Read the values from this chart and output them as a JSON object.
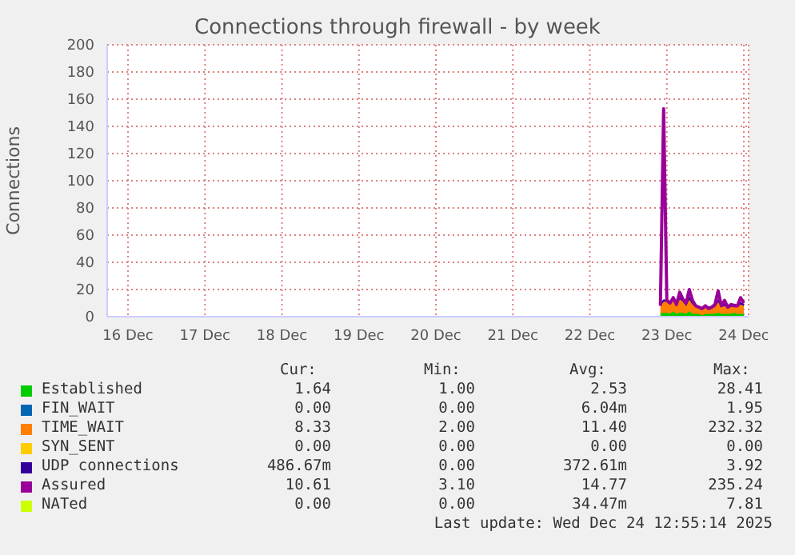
{
  "chart_data": {
    "type": "area",
    "title": "Connections through firewall - by week",
    "ylabel": "Connections",
    "stacked": true,
    "grid": true,
    "legend": "bottom",
    "x": [
      "2025-12-22T22:00",
      "2025-12-22T23:00",
      "2025-12-23T00:00",
      "2025-12-23T01:00",
      "2025-12-23T02:00",
      "2025-12-23T03:00",
      "2025-12-23T04:00",
      "2025-12-23T05:00",
      "2025-12-23T06:00",
      "2025-12-23T07:00",
      "2025-12-23T08:00",
      "2025-12-23T09:00",
      "2025-12-23T10:00",
      "2025-12-23T11:00",
      "2025-12-23T12:00",
      "2025-12-23T13:00",
      "2025-12-23T14:00",
      "2025-12-23T15:00",
      "2025-12-23T16:00",
      "2025-12-23T17:00",
      "2025-12-23T18:00",
      "2025-12-23T19:00",
      "2025-12-23T20:00",
      "2025-12-23T21:00",
      "2025-12-23T22:00",
      "2025-12-23T23:00",
      "2025-12-24T00:00"
    ],
    "xlim": [
      "2025-12-15T17:30",
      "2025-12-24T01:30"
    ],
    "xticks": [
      {
        "value": "2025-12-16",
        "label": "16 Dec"
      },
      {
        "value": "2025-12-17",
        "label": "17 Dec"
      },
      {
        "value": "2025-12-18",
        "label": "18 Dec"
      },
      {
        "value": "2025-12-19",
        "label": "19 Dec"
      },
      {
        "value": "2025-12-20",
        "label": "20 Dec"
      },
      {
        "value": "2025-12-21",
        "label": "21 Dec"
      },
      {
        "value": "2025-12-22",
        "label": "22 Dec"
      },
      {
        "value": "2025-12-23",
        "label": "23 Dec"
      },
      {
        "value": "2025-12-24",
        "label": "24 Dec"
      }
    ],
    "ylim": [
      0,
      200
    ],
    "yticks": [
      0,
      20,
      40,
      60,
      80,
      100,
      120,
      140,
      160,
      180,
      200
    ],
    "series": [
      {
        "name": "Established",
        "color": "#00cc00",
        "values": [
          2,
          3,
          3,
          2,
          4,
          2,
          3,
          3,
          2,
          4,
          2,
          2,
          2,
          1,
          2,
          2,
          2,
          2,
          3,
          2,
          2,
          2,
          2,
          3,
          2,
          2,
          2
        ]
      },
      {
        "name": "FIN_WAIT",
        "color": "#0066b3",
        "values": [
          null,
          null,
          null,
          null,
          null,
          null,
          null,
          null,
          null,
          null,
          null,
          null,
          null,
          null,
          null,
          null,
          null,
          null,
          null,
          null,
          null,
          null,
          null,
          null,
          null,
          null,
          null
        ]
      },
      {
        "name": "TIME_WAIT",
        "color": "#ff8000",
        "values": [
          6,
          8,
          8,
          7,
          9,
          6,
          10,
          8,
          6,
          9,
          7,
          5,
          4,
          4,
          5,
          4,
          4,
          5,
          8,
          5,
          6,
          4,
          5,
          5,
          5,
          7,
          6
        ]
      },
      {
        "name": "SYN_SENT",
        "color": "#ffcc00",
        "values": [
          null,
          null,
          null,
          null,
          null,
          null,
          null,
          null,
          null,
          null,
          null,
          null,
          null,
          null,
          null,
          null,
          null,
          null,
          null,
          null,
          null,
          null,
          null,
          null,
          null,
          null,
          null
        ]
      },
      {
        "name": "UDP connections",
        "color": "#330099",
        "values": [
          1,
          1,
          1,
          1,
          1,
          1,
          1,
          1,
          1,
          1,
          1,
          1,
          1,
          1,
          1,
          1,
          1,
          1,
          1,
          1,
          1,
          1,
          1,
          1,
          1,
          1,
          1
        ]
      },
      {
        "name": "Assured",
        "type": "line",
        "color": "#990099",
        "values": [
          8,
          153,
          12,
          10,
          14,
          9,
          18,
          13,
          10,
          20,
          12,
          8,
          7,
          6,
          8,
          6,
          7,
          9,
          19,
          8,
          12,
          7,
          9,
          8,
          8,
          14,
          10
        ]
      },
      {
        "name": "NATed",
        "type": "line",
        "color": "#ccff00",
        "values": [
          null,
          null,
          null,
          null,
          null,
          null,
          null,
          null,
          null,
          null,
          null,
          null,
          null,
          null,
          null,
          null,
          null,
          null,
          null,
          null,
          null,
          null,
          null,
          null,
          null,
          null,
          null
        ]
      }
    ],
    "annotations": [
      "Cur:",
      "Min:",
      "Avg:",
      "Max:",
      "1.64",
      "1.00",
      "2.53",
      "28.41",
      "0.00",
      "0.00",
      "6.04m",
      "1.95",
      "8.33",
      "2.00",
      "11.40",
      "232.32",
      "0.00",
      "0.00",
      "0.00",
      "0.00",
      "486.67m",
      "0.00",
      "372.61m",
      "3.92",
      "10.61",
      "3.10",
      "14.77",
      "235.24",
      "0.00",
      "0.00",
      "34.47m",
      "7.81",
      "Last update: Wed Dec 24 12:55:14 2025"
    ]
  }
}
